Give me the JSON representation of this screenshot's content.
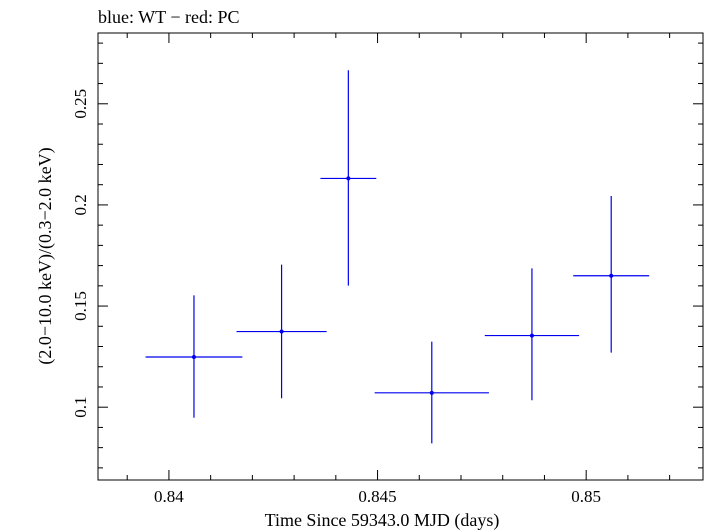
{
  "chart_data": {
    "type": "scatter",
    "title": "blue: WT − red: PC",
    "xlabel": "Time Since 59343.0 MJD (days)",
    "ylabel": "(2.0−10.0 keV)/(0.3−2.0 keV)",
    "xlim": [
      0.8383,
      0.8528
    ],
    "ylim": [
      0.064,
      0.285
    ],
    "x_ticks": [
      {
        "value": 0.84,
        "label": "0.84"
      },
      {
        "value": 0.845,
        "label": "0.845"
      },
      {
        "value": 0.85,
        "label": "0.85"
      }
    ],
    "y_ticks": [
      {
        "value": 0.1,
        "label": "0.1"
      },
      {
        "value": 0.15,
        "label": "0.15"
      },
      {
        "value": 0.2,
        "label": "0.2"
      },
      {
        "value": 0.25,
        "label": "0.25"
      }
    ],
    "grid": false,
    "series": [
      {
        "color": "#0000ee",
        "points": [
          {
            "x": 0.8406,
            "y": 0.1248,
            "xerr": 0.00116,
            "yerr_low": 0.03,
            "yerr_high": 0.0305
          },
          {
            "x": 0.8427,
            "y": 0.1374,
            "xerr": 0.00108,
            "yerr_low": 0.033,
            "yerr_high": 0.0331
          },
          {
            "x": 0.8443,
            "y": 0.2131,
            "xerr": 0.00067,
            "yerr_low": 0.053,
            "yerr_high": 0.0535
          },
          {
            "x": 0.8463,
            "y": 0.1071,
            "xerr": 0.00137,
            "yerr_low": 0.025,
            "yerr_high": 0.0253
          },
          {
            "x": 0.8487,
            "y": 0.1354,
            "xerr": 0.00113,
            "yerr_low": 0.032,
            "yerr_high": 0.0332
          },
          {
            "x": 0.8506,
            "y": 0.165,
            "xerr": 0.00091,
            "yerr_low": 0.038,
            "yerr_high": 0.0394
          }
        ]
      }
    ]
  }
}
